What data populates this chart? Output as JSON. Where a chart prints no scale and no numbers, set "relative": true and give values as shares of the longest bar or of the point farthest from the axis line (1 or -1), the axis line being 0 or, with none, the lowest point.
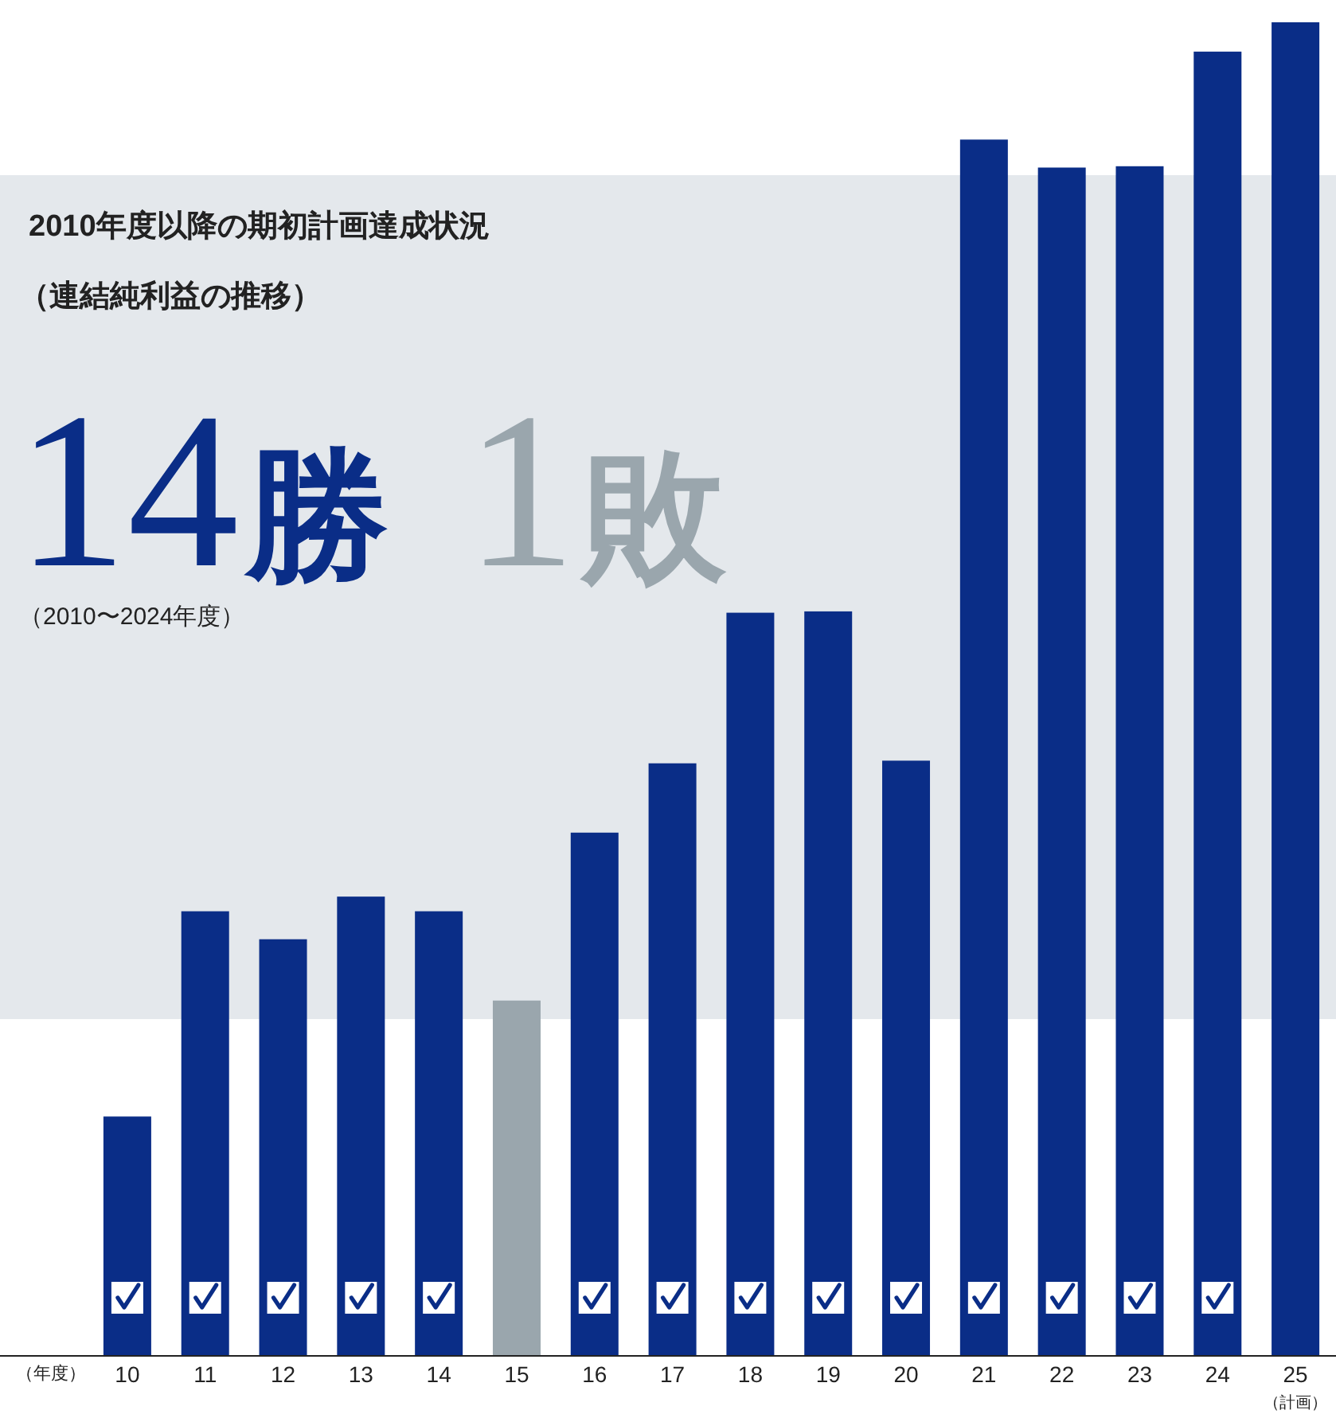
{
  "chart_data": {
    "type": "bar",
    "title": "2010年度以降の期初計画達成状況",
    "subtitle": "（連結純利益の推移）",
    "xlabel": "（年度）",
    "categories": [
      "10",
      "11",
      "12",
      "13",
      "14",
      "15",
      "16",
      "17",
      "18",
      "19",
      "20",
      "21",
      "22",
      "23",
      "24",
      "25"
    ],
    "values": [
      0.179,
      0.333,
      0.312,
      0.344,
      0.333,
      0.266,
      0.392,
      0.444,
      0.557,
      0.558,
      0.446,
      0.912,
      0.891,
      0.892,
      0.978,
      1
    ],
    "colors": [
      "#0a2d87",
      "#0a2d87",
      "#0a2d87",
      "#0a2d87",
      "#0a2d87",
      "#9aa6ad",
      "#0a2d87",
      "#0a2d87",
      "#0a2d87",
      "#0a2d87",
      "#0a2d87",
      "#0a2d87",
      "#0a2d87",
      "#0a2d87",
      "#0a2d87",
      "#0a2d87"
    ],
    "relative": true,
    "annotations": [
      "14勝",
      "1敗",
      "（2010〜2024年度）",
      "（計画）"
    ]
  }
}
